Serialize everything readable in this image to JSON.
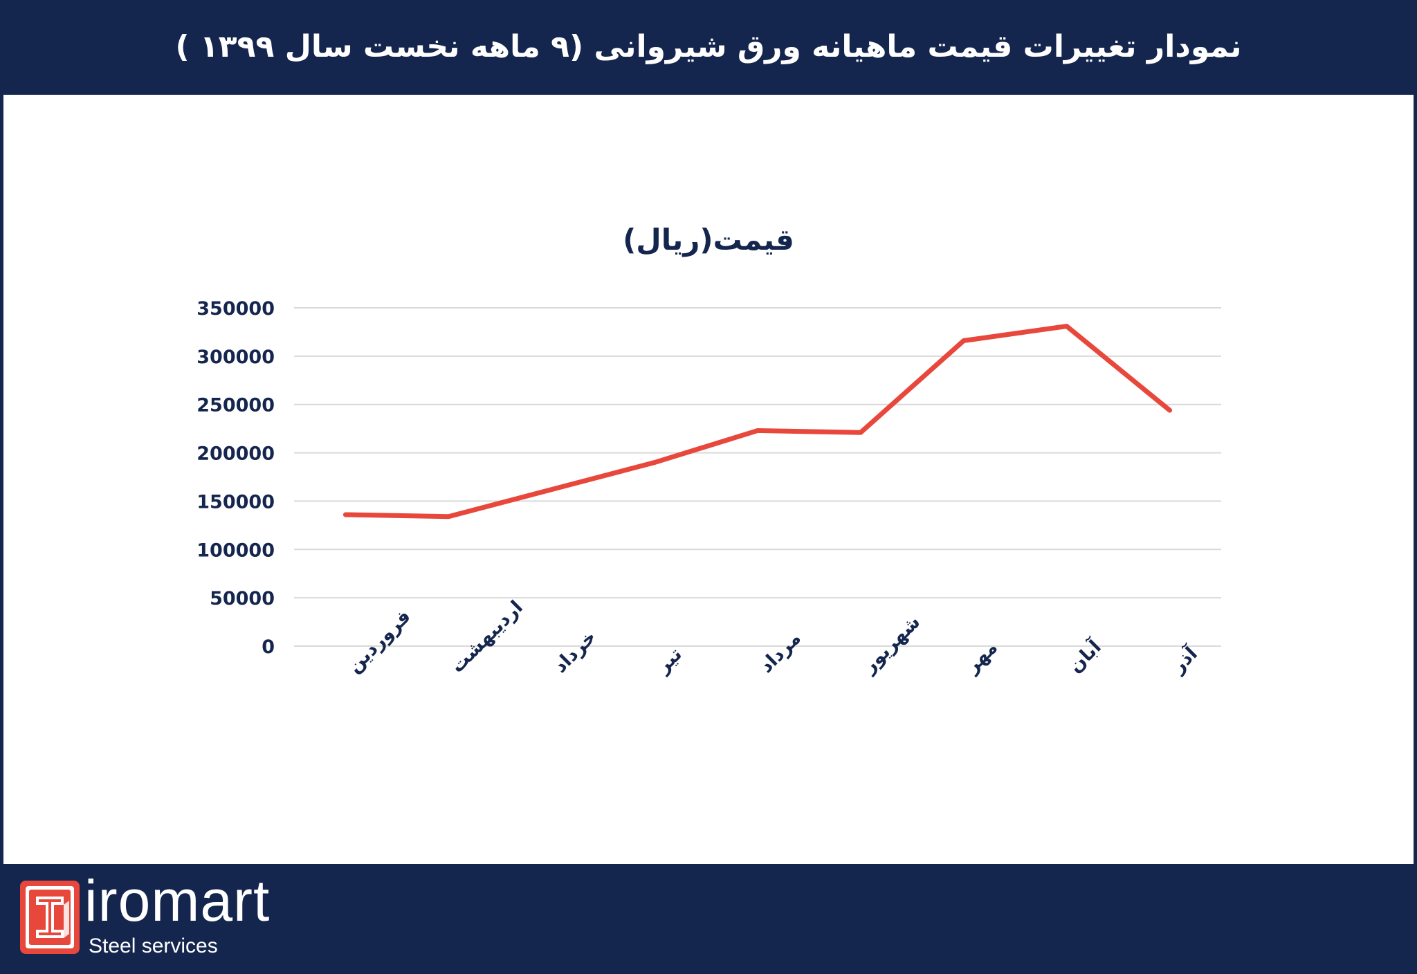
{
  "header": {
    "title": "نمودار تغییرات قیمت ماهیانه ورق شیروانی (۹ ماهه نخست سال ۱۳۹۹ )"
  },
  "brand": {
    "name": "iromart",
    "tagline": "Steel services",
    "logo_icon": "steel-beam-logo-icon",
    "colors": {
      "navy": "#15264e",
      "accent": "#e8473c",
      "grid": "#d9d9d9"
    }
  },
  "chart_data": {
    "type": "line",
    "title": "قیمت(ریال)",
    "categories": [
      "فروردین",
      "اردیبهشت",
      "خرداد",
      "تیر",
      "مرداد",
      "شهریور",
      "مهر",
      "آبان",
      "آذر"
    ],
    "series": [
      {
        "values": [
          136000,
          134000,
          162000,
          190000,
          223000,
          221000,
          316000,
          331000,
          244000
        ],
        "color": "#e8473c"
      }
    ],
    "ylim": [
      0,
      350000
    ],
    "yticks": [
      0,
      50000,
      100000,
      150000,
      200000,
      250000,
      300000,
      350000
    ],
    "ytick_labels": [
      "0",
      "50000",
      "100000",
      "150000",
      "200000",
      "250000",
      "300000",
      "350000"
    ],
    "grid": true,
    "legend": "none"
  }
}
